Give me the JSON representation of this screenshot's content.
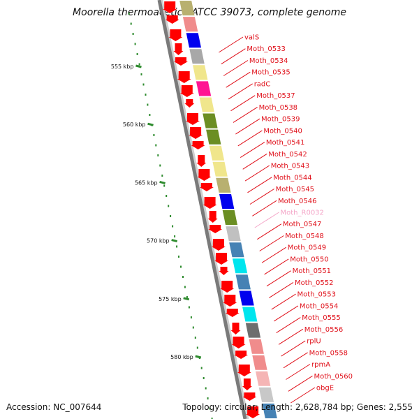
{
  "title": "Moorella thermoacetica ATCC 39073, complete genome",
  "footer": {
    "accession": "Accession: NC_007644",
    "topology": "Topology: circular; Length: 2,628,784 bp; Genes: 2,555"
  },
  "ruler": {
    "ticks": [
      "555 kbp",
      "560 kbp",
      "565 kbp",
      "570 kbp",
      "575 kbp",
      "580 kbp"
    ],
    "color": "#2e8b2e"
  },
  "colors": {
    "backbone": "#7a7a7a",
    "gene_label": "#e0101a",
    "rna_label": "#f4a6c8",
    "leader_line": "#e0101a",
    "forward_arrow": "#ff0000"
  },
  "genes": [
    {
      "label": "valS",
      "kind": "cds"
    },
    {
      "label": "Moth_0533",
      "kind": "cds"
    },
    {
      "label": "Moth_0534",
      "kind": "cds"
    },
    {
      "label": "Moth_0535",
      "kind": "cds"
    },
    {
      "label": "radC",
      "kind": "cds"
    },
    {
      "label": "Moth_0537",
      "kind": "cds"
    },
    {
      "label": "Moth_0538",
      "kind": "cds"
    },
    {
      "label": "Moth_0539",
      "kind": "cds"
    },
    {
      "label": "Moth_0540",
      "kind": "cds"
    },
    {
      "label": "Moth_0541",
      "kind": "cds"
    },
    {
      "label": "Moth_0542",
      "kind": "cds"
    },
    {
      "label": "Moth_0543",
      "kind": "cds"
    },
    {
      "label": "Moth_0544",
      "kind": "cds"
    },
    {
      "label": "Moth_0545",
      "kind": "cds"
    },
    {
      "label": "Moth_0546",
      "kind": "cds"
    },
    {
      "label": "Moth_R0032",
      "kind": "rna"
    },
    {
      "label": "Moth_0547",
      "kind": "cds"
    },
    {
      "label": "Moth_0548",
      "kind": "cds"
    },
    {
      "label": "Moth_0549",
      "kind": "cds"
    },
    {
      "label": "Moth_0550",
      "kind": "cds"
    },
    {
      "label": "Moth_0551",
      "kind": "cds"
    },
    {
      "label": "Moth_0552",
      "kind": "cds"
    },
    {
      "label": "Moth_0553",
      "kind": "cds"
    },
    {
      "label": "Moth_0554",
      "kind": "cds"
    },
    {
      "label": "Moth_0555",
      "kind": "cds"
    },
    {
      "label": "Moth_0556",
      "kind": "cds"
    },
    {
      "label": "rplU",
      "kind": "cds"
    },
    {
      "label": "Moth_0558",
      "kind": "cds"
    },
    {
      "label": "rpmA",
      "kind": "cds"
    },
    {
      "label": "Moth_0560",
      "kind": "cds"
    },
    {
      "label": "obgE",
      "kind": "cds"
    }
  ],
  "cog_blocks": [
    {
      "color": "#b8b070"
    },
    {
      "color": "#f08c8c"
    },
    {
      "color": "#0000ee"
    },
    {
      "color": "#a8a8a8"
    },
    {
      "color": "#f0e68c"
    },
    {
      "color": "#ff1493"
    },
    {
      "color": "#f0e68c"
    },
    {
      "color": "#6b8e23"
    },
    {
      "color": "#6b8e23"
    },
    {
      "color": "#f0e68c"
    },
    {
      "color": "#f0e68c"
    },
    {
      "color": "#b8b070"
    },
    {
      "color": "#0000ee"
    },
    {
      "color": "#6b8e23"
    },
    {
      "color": "#c0c0c0"
    },
    {
      "color": "#4682b4"
    },
    {
      "color": "#00e5ee"
    },
    {
      "color": "#4682b4"
    },
    {
      "color": "#0000ee"
    },
    {
      "color": "#00e5ee"
    },
    {
      "color": "#6e6e6e"
    },
    {
      "color": "#f08c8c"
    },
    {
      "color": "#f08c8c"
    },
    {
      "color": "#f5b5b5"
    },
    {
      "color": "#c8c8c8"
    },
    {
      "color": "#4682b4"
    }
  ]
}
